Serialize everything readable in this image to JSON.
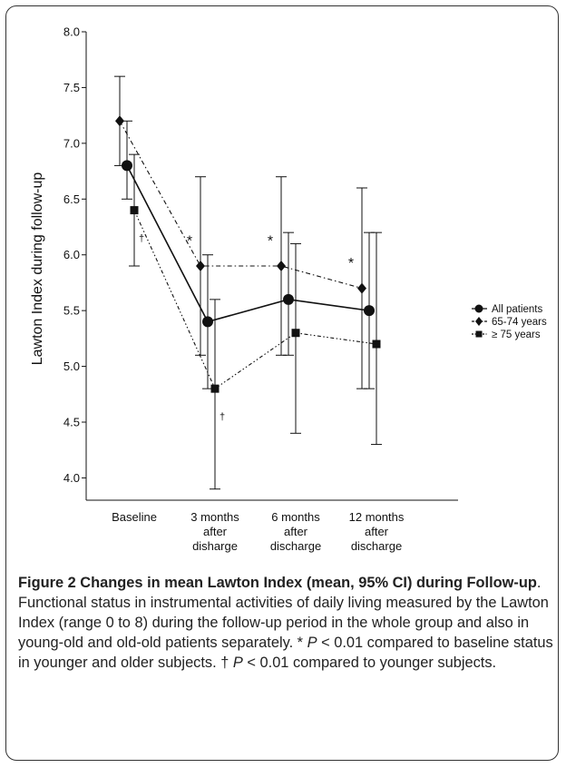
{
  "chart_data": {
    "type": "line",
    "ylabel": "Lawton Index during follow-up",
    "ylim": [
      3.8,
      8.0
    ],
    "y_ticks": [
      "4.0",
      "4.5",
      "5.0",
      "5.5",
      "6.0",
      "6.5",
      "7.0",
      "7.5",
      "8.0"
    ],
    "categories": [
      [
        "Baseline"
      ],
      [
        "3 months",
        "after",
        "disharge"
      ],
      [
        "6 months",
        "after",
        "discharge"
      ],
      [
        "12 months",
        "after",
        "discharge"
      ]
    ],
    "grid": false,
    "legend_position": "right",
    "series": [
      {
        "name": "All patients",
        "marker": "circle",
        "line_style": "solid",
        "values": [
          6.8,
          5.4,
          5.6,
          5.5
        ],
        "ci_low": [
          6.5,
          4.8,
          5.1,
          4.8
        ],
        "ci_high": [
          7.2,
          6.0,
          6.2,
          6.2
        ]
      },
      {
        "name": "65-74 years",
        "marker": "diamond",
        "line_style": "dash-dot",
        "values": [
          7.2,
          5.9,
          5.9,
          5.7
        ],
        "ci_low": [
          6.8,
          5.1,
          5.1,
          4.8
        ],
        "ci_high": [
          7.6,
          6.7,
          6.7,
          6.6
        ]
      },
      {
        "name": "≥ 75 years",
        "marker": "square",
        "line_style": "dash-dot-dot",
        "values": [
          6.4,
          4.8,
          5.3,
          5.2
        ],
        "ci_low": [
          5.9,
          3.9,
          4.4,
          4.3
        ],
        "ci_high": [
          6.9,
          5.6,
          6.1,
          6.2
        ]
      }
    ],
    "annotations": [
      {
        "text": "*",
        "category": 1,
        "y": 6.15
      },
      {
        "text": "*",
        "category": 2,
        "y": 6.15
      },
      {
        "text": "*",
        "category": 3,
        "y": 5.95
      },
      {
        "text": "†",
        "category": 0,
        "y": 6.12
      },
      {
        "text": "†",
        "category": 1,
        "y": 4.52
      }
    ]
  },
  "caption": {
    "title": "Figure 2 Changes in mean Lawton Index (mean, 95% CI) during Follow-up",
    "text_1": ". Functional status in instrumental activities of daily living measured by the Lawton Index (range 0 to 8) during the follow-up period in the whole group and also in young-old and old-old patients separately. * ",
    "p_symbol_1": "P",
    "text_2": " < 0.01 compared to baseline status in younger and older subjects. † ",
    "p_symbol_2": "P",
    "text_3": " < 0.01 compared to younger subjects."
  }
}
